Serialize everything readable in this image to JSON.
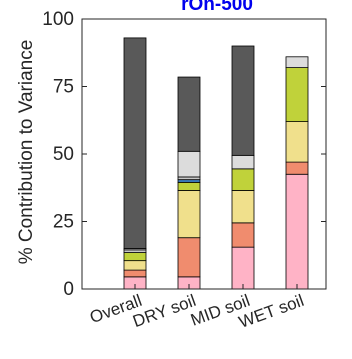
{
  "chart_data": {
    "type": "bar",
    "stacked": true,
    "title": "rOn-500",
    "ylabel": "% Contribution to Variance",
    "xlabel": "",
    "ylim": [
      0,
      100
    ],
    "yticks": [
      0,
      25,
      50,
      75,
      100
    ],
    "categories": [
      "Overall",
      "DRY soil",
      "MID soil",
      "WET soil"
    ],
    "grid": false,
    "legend": "none",
    "series": [
      {
        "color": "#ffb3c6",
        "values": [
          4.5,
          4.5,
          15.5,
          42.5
        ]
      },
      {
        "color": "#f08c6e",
        "values": [
          2.5,
          14.5,
          9,
          4.5
        ]
      },
      {
        "color": "#f0e08c",
        "values": [
          3.5,
          17.5,
          12,
          15
        ]
      },
      {
        "color": "#c0d23a",
        "values": [
          3,
          3,
          8,
          20
        ]
      },
      {
        "color": "#3c7fc0",
        "values": [
          0,
          1,
          0,
          0
        ]
      },
      {
        "color": "#c8c8c8",
        "values": [
          1,
          1,
          0,
          0
        ]
      },
      {
        "color": "#dcdcdc",
        "values": [
          0.5,
          9.5,
          5,
          4
        ]
      },
      {
        "color": "#595959",
        "values": [
          78,
          27.5,
          40.5,
          0
        ]
      }
    ]
  }
}
